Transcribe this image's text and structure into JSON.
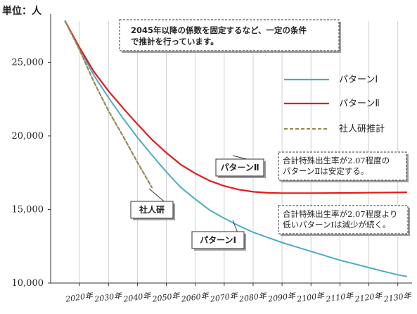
{
  "chart_data": {
    "type": "line",
    "unit_label": "単位：人",
    "ylim": [
      10000,
      27800
    ],
    "y_ticks": [
      10000,
      15000,
      20000,
      25000
    ],
    "y_tick_labels": [
      "10,000",
      "15,000",
      "20,000",
      "25,000"
    ],
    "x_tick_labels": [
      "2020年",
      "2030年",
      "2040年",
      "2050年",
      "2060年",
      "2070年",
      "2080年",
      "2090年",
      "2100年",
      "2110年",
      "2120年",
      "2130年"
    ],
    "xlim": [
      2010,
      2133
    ],
    "grid": "vertical",
    "legend_position": "right",
    "series": [
      {
        "name": "パターンⅠ",
        "color": "#4bacc6",
        "dash": "solid",
        "x": [
          2015,
          2020,
          2025,
          2030,
          2035,
          2040,
          2045,
          2050,
          2055,
          2060,
          2065,
          2070,
          2075,
          2080,
          2085,
          2090,
          2095,
          2100,
          2105,
          2110,
          2115,
          2120,
          2125,
          2130,
          2133
        ],
        "y": [
          27800,
          25900,
          24100,
          22600,
          21200,
          19900,
          18700,
          17550,
          16500,
          15700,
          14950,
          14400,
          13900,
          13450,
          13100,
          12750,
          12450,
          12150,
          11850,
          11550,
          11300,
          11050,
          10800,
          10560,
          10450
        ]
      },
      {
        "name": "パターンⅡ",
        "color": "#e41a1c",
        "dash": "solid",
        "x": [
          2015,
          2020,
          2025,
          2030,
          2035,
          2040,
          2045,
          2050,
          2055,
          2060,
          2065,
          2070,
          2075,
          2080,
          2085,
          2090,
          2100,
          2110,
          2120,
          2130,
          2133
        ],
        "y": [
          27800,
          26000,
          24350,
          23050,
          21900,
          20800,
          19750,
          18850,
          18050,
          17450,
          16950,
          16600,
          16350,
          16200,
          16130,
          16110,
          16110,
          16120,
          16140,
          16160,
          16170
        ]
      },
      {
        "name": "社人研推計",
        "color": "#948a54",
        "dash": "dashed",
        "x": [
          2015,
          2020,
          2025,
          2030,
          2035,
          2040,
          2045
        ],
        "y": [
          27800,
          25850,
          23650,
          21700,
          20000,
          18200,
          16500
        ]
      }
    ],
    "annotations": {
      "top_note": [
        "2045年以降の係数を固定するなど、一定の条件",
        "で推計を行っています。"
      ],
      "note_pattern2": [
        "合計特殊出生率が2.07程度の",
        "パターンⅡは安定する。"
      ],
      "note_pattern1": [
        "合計特殊出生率が2.07程度より",
        "低いパターンⅠは減少が続く。"
      ],
      "callout_pattern2": "パターンⅡ",
      "callout_pattern1": "パターンⅠ",
      "callout_shajinken": "社人研"
    }
  }
}
